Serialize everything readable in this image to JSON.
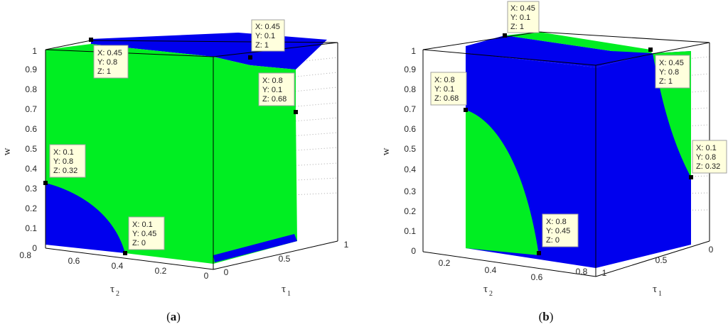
{
  "colors": {
    "green": "#00ee22",
    "blue": "#0000ee",
    "frame": "#000000",
    "grid": "#a8a8a8"
  },
  "chart_data": [
    {
      "type": "surface-3d",
      "caption_open": "(",
      "caption_letter": "a",
      "caption_close": ")",
      "xlabel_base": "τ",
      "xlabel_sub": "1",
      "ylabel_base": "τ",
      "ylabel_sub": "2",
      "zlabel": "w",
      "x_ticks": [
        "0",
        "0.5",
        "1"
      ],
      "y_ticks": [
        "0.8",
        "0.6",
        "0.4",
        "0.2",
        "0"
      ],
      "z_ticks": [
        "0",
        "0.1",
        "0.2",
        "0.3",
        "0.4",
        "0.5",
        "0.6",
        "0.7",
        "0.8",
        "0.9",
        "1"
      ],
      "xlim": [
        0,
        1
      ],
      "ylim": [
        0,
        0.8
      ],
      "zlim": [
        0,
        1
      ],
      "data_tips": [
        {
          "x": "X: 0.45",
          "y": "Y: 0.1",
          "z": "Z: 1"
        },
        {
          "x": "X: 0.45",
          "y": "Y: 0.8",
          "z": "Z: 1"
        },
        {
          "x": "X: 0.8",
          "y": "Y: 0.1",
          "z": "Z: 0.68"
        },
        {
          "x": "X: 0.1",
          "y": "Y: 0.8",
          "z": "Z: 0.32"
        },
        {
          "x": "X: 0.1",
          "y": "Y: 0.45",
          "z": "Z: 0"
        }
      ]
    },
    {
      "type": "surface-3d",
      "caption_open": "(",
      "caption_letter": "b",
      "caption_close": ")",
      "xlabel_base": "τ",
      "xlabel_sub": "1",
      "ylabel_base": "τ",
      "ylabel_sub": "2",
      "zlabel": "w",
      "x_ticks": [
        "1",
        "0.5",
        "0"
      ],
      "y_ticks": [
        "0.2",
        "0.4",
        "0.6",
        "0.8"
      ],
      "z_ticks": [
        "0",
        "0.1",
        "0.2",
        "0.3",
        "0.4",
        "0.5",
        "0.6",
        "0.7",
        "0.8",
        "0.9",
        "1"
      ],
      "xlim": [
        0,
        1
      ],
      "ylim": [
        0,
        0.8
      ],
      "zlim": [
        0,
        1
      ],
      "data_tips": [
        {
          "x": "X: 0.45",
          "y": "Y: 0.1",
          "z": "Z: 1"
        },
        {
          "x": "X: 0.45",
          "y": "Y: 0.8",
          "z": "Z: 1"
        },
        {
          "x": "X: 0.8",
          "y": "Y: 0.1",
          "z": "Z: 0.68"
        },
        {
          "x": "X: 0.1",
          "y": "Y: 0.8",
          "z": "Z: 0.32"
        },
        {
          "x": "X: 0.8",
          "y": "Y: 0.45",
          "z": "Z: 0"
        }
      ]
    }
  ]
}
